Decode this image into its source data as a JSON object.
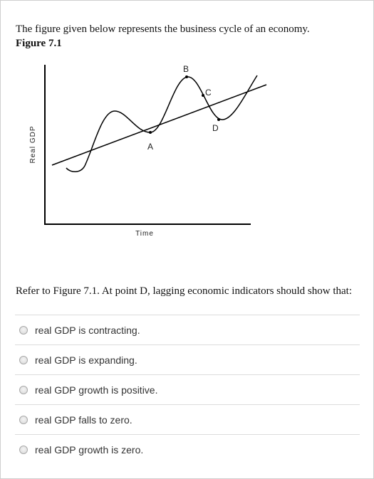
{
  "intro_text": "The figure given below represents the business cycle of an economy.",
  "figure_title": "Figure 7.1",
  "figure": {
    "y_axis_label": "Real GDP",
    "x_axis_label": "Time",
    "points": [
      "A",
      "B",
      "C",
      "D"
    ]
  },
  "question_text": "Refer to Figure 7.1. At point D, lagging economic indicators should show that:",
  "options": [
    {
      "label": "real GDP is contracting."
    },
    {
      "label": "real GDP is expanding."
    },
    {
      "label": "real GDP growth is positive."
    },
    {
      "label": "real GDP falls to zero."
    },
    {
      "label": "real GDP growth is zero."
    }
  ]
}
